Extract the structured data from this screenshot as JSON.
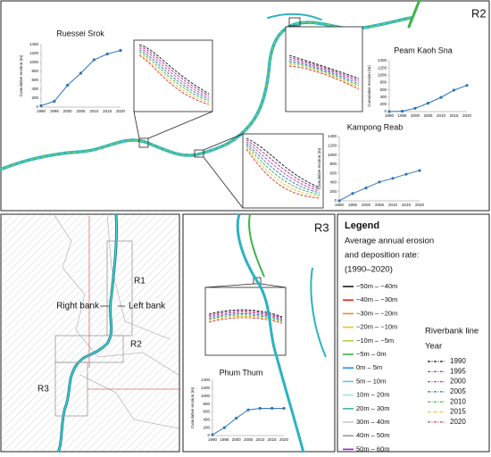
{
  "chart_data": [
    {
      "type": "line",
      "title": "Ruessei Srok",
      "ylabel": "Cumulative erosion (m)",
      "categories": [
        "1990",
        "1995",
        "2000",
        "2005",
        "2010",
        "2015",
        "2020"
      ],
      "values": [
        30,
        130,
        490,
        760,
        1060,
        1190,
        1270
      ],
      "color": "#2e75b6",
      "ylim": [
        0,
        1400
      ],
      "yticks": [
        0,
        200,
        400,
        600,
        800,
        1000,
        1200,
        1400
      ]
    },
    {
      "type": "line",
      "title": "Peam Kaoh Sna",
      "ylabel": "Cumulative erosion (m)",
      "categories": [
        "1990",
        "1995",
        "2000",
        "2005",
        "2010",
        "2015",
        "2020"
      ],
      "values": [
        0,
        10,
        90,
        230,
        390,
        590,
        720
      ],
      "color": "#2e75b6",
      "ylim": [
        0,
        1400
      ],
      "yticks": [
        0,
        200,
        400,
        600,
        800,
        1000,
        1200,
        1400
      ]
    },
    {
      "type": "line",
      "title": "Kampong Reab",
      "ylabel": "Cumulative erosion (m)",
      "categories": [
        "1990",
        "1995",
        "2000",
        "2005",
        "2010",
        "2015",
        "2020"
      ],
      "values": [
        0,
        160,
        280,
        410,
        490,
        580,
        660
      ],
      "color": "#2e75b6",
      "ylim": [
        0,
        1400
      ],
      "yticks": [
        0,
        200,
        400,
        600,
        800,
        1000,
        1200,
        1400
      ]
    },
    {
      "type": "line",
      "title": "Phum Thum",
      "ylabel": "Cumulative erosion (m)",
      "categories": [
        "1990",
        "1995",
        "2000",
        "2005",
        "2010",
        "2015",
        "2020"
      ],
      "values": [
        20,
        200,
        440,
        650,
        690,
        690,
        690
      ],
      "color": "#2e75b6",
      "ylim": [
        0,
        1400
      ],
      "yticks": [
        0,
        200,
        400,
        600,
        800,
        1000,
        1200,
        1400
      ]
    }
  ],
  "panels": {
    "r2": "R2",
    "r3": "R3"
  },
  "map": {
    "r1": "R1",
    "r2": "R2",
    "r3": "R3",
    "right_bank": "Right bank",
    "left_bank": "Left bank"
  },
  "legend": {
    "title": "Legend",
    "rate_title": [
      "Average annual erosion",
      "and deposition rate:",
      "(1990–2020)"
    ],
    "rates": [
      {
        "label": "−50m – −40m",
        "color": "#1a1a1a"
      },
      {
        "label": "−40m – −30m",
        "color": "#e0271b"
      },
      {
        "label": "−30m – −20m",
        "color": "#f08a24"
      },
      {
        "label": "−20m – −10m",
        "color": "#f5c518"
      },
      {
        "label": "−10m – −5m",
        "color": "#b5d334"
      },
      {
        "label": "−5m – 0m",
        "color": "#3cb44b"
      },
      {
        "label": "0m – 5m",
        "color": "#1e90ff"
      },
      {
        "label": "5m – 10m",
        "color": "#5fc8f0"
      },
      {
        "label": "10m – 20m",
        "color": "#9fe3e8"
      },
      {
        "label": "20m – 30m",
        "color": "#3fb8a8"
      },
      {
        "label": "30m – 40m",
        "color": "#c8c8c8"
      },
      {
        "label": "40m – 50m",
        "color": "#9a9a9a"
      },
      {
        "label": "50m – 60m",
        "color": "#a020c0"
      }
    ],
    "line_title": [
      "Riverbank line",
      "Year"
    ],
    "years": [
      {
        "label": "1990",
        "color": "#111111"
      },
      {
        "label": "1995",
        "color": "#8e2c8e"
      },
      {
        "label": "2000",
        "color": "#d03a9a"
      },
      {
        "label": "2005",
        "color": "#2a6fd0"
      },
      {
        "label": "2010",
        "color": "#39a845"
      },
      {
        "label": "2015",
        "color": "#e8c020"
      },
      {
        "label": "2020",
        "color": "#d83030"
      }
    ]
  }
}
